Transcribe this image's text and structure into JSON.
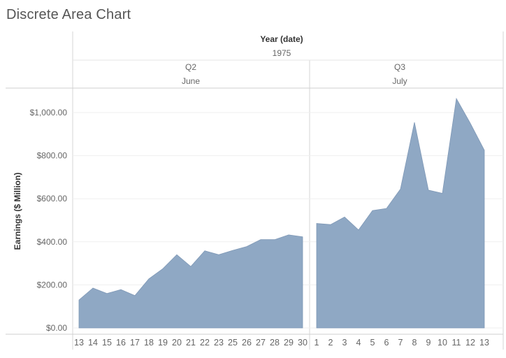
{
  "title": "Discrete Area Chart",
  "header": {
    "level1_label": "Year (date)",
    "year": "1975",
    "panels": [
      {
        "quarter": "Q2",
        "month": "June"
      },
      {
        "quarter": "Q3",
        "month": "July"
      }
    ]
  },
  "chart_data": {
    "type": "area",
    "title": "Discrete Area Chart",
    "ylabel": "Earnings ($ Million)",
    "xlabel": "",
    "ylim": [
      0,
      1100
    ],
    "y_ticks": [
      "$0.00",
      "$200.00",
      "$400.00",
      "$600.00",
      "$800.00",
      "$1,000.00"
    ],
    "y_tick_values": [
      0,
      200,
      400,
      600,
      800,
      1000
    ],
    "grid": true,
    "color": "#8FA8C4",
    "panels": [
      {
        "quarter": "Q2",
        "month": "June",
        "x": [
          "13",
          "14",
          "15",
          "16",
          "17",
          "18",
          "19",
          "20",
          "21",
          "22",
          "23",
          "25",
          "26",
          "27",
          "28",
          "29",
          "30"
        ],
        "values": [
          130,
          185,
          160,
          178,
          150,
          228,
          275,
          340,
          285,
          358,
          340,
          360,
          378,
          410,
          410,
          432,
          423
        ]
      },
      {
        "quarter": "Q3",
        "month": "July",
        "x": [
          "1",
          "2",
          "3",
          "4",
          "5",
          "6",
          "7",
          "8",
          "9",
          "10",
          "11",
          "12",
          "13"
        ],
        "values": [
          485,
          480,
          515,
          455,
          545,
          555,
          645,
          955,
          640,
          625,
          1065,
          950,
          825
        ]
      }
    ]
  }
}
